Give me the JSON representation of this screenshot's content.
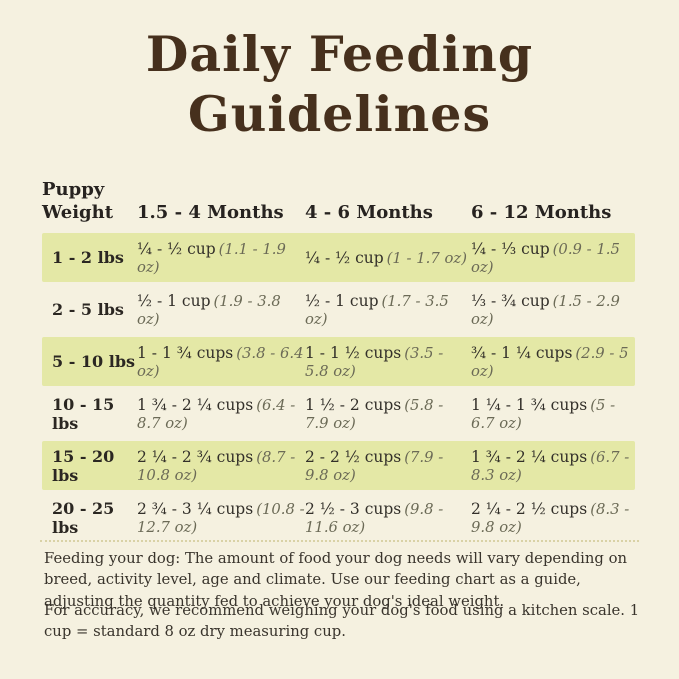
{
  "title": {
    "line1": "Daily Feeding",
    "line2": "Guidelines"
  },
  "table": {
    "weight_header": {
      "line1": "Puppy",
      "line2": "Weight"
    },
    "column_headers": [
      "1.5 - 4 Months",
      "4 - 6 Months",
      "6 - 12 Months"
    ],
    "rows": [
      {
        "weight": "1 - 2 lbs",
        "highlighted": true,
        "cells": [
          {
            "amount": "¼ - ½ cup",
            "oz": "(1.1 - 1.9 oz)"
          },
          {
            "amount": "¼ - ½ cup",
            "oz": "(1 - 1.7 oz)"
          },
          {
            "amount": "¼ - ⅓ cup",
            "oz": "(0.9 - 1.5 oz)"
          }
        ]
      },
      {
        "weight": "2 - 5 lbs",
        "highlighted": false,
        "cells": [
          {
            "amount": "½ - 1 cup",
            "oz": "(1.9 - 3.8 oz)"
          },
          {
            "amount": "½ - 1 cup",
            "oz": "(1.7 - 3.5 oz)"
          },
          {
            "amount": "⅓ - ¾ cup",
            "oz": "(1.5 - 2.9 oz)"
          }
        ]
      },
      {
        "weight": "5 - 10 lbs",
        "highlighted": true,
        "cells": [
          {
            "amount": "1 - 1 ¾ cups",
            "oz": "(3.8 - 6.4 oz)"
          },
          {
            "amount": "1 - 1 ½ cups",
            "oz": "(3.5 - 5.8 oz)"
          },
          {
            "amount": "¾ - 1 ¼ cups",
            "oz": "(2.9 - 5 oz)"
          }
        ]
      },
      {
        "weight": "10 - 15 lbs",
        "highlighted": false,
        "cells": [
          {
            "amount": "1 ¾ - 2 ¼ cups",
            "oz": "(6.4 - 8.7 oz)"
          },
          {
            "amount": "1 ½ - 2 cups",
            "oz": "(5.8 - 7.9 oz)"
          },
          {
            "amount": "1 ¼ - 1 ¾ cups",
            "oz": "(5 - 6.7 oz)"
          }
        ]
      },
      {
        "weight": "15 - 20 lbs",
        "highlighted": true,
        "cells": [
          {
            "amount": "2 ¼ - 2 ¾ cups",
            "oz": "(8.7 - 10.8 oz)"
          },
          {
            "amount": "2 - 2 ½ cups",
            "oz": "(7.9 - 9.8 oz)"
          },
          {
            "amount": "1 ¾ - 2 ¼ cups",
            "oz": "(6.7 - 8.3 oz)"
          }
        ]
      },
      {
        "weight": "20 - 25 lbs",
        "highlighted": false,
        "cells": [
          {
            "amount": "2 ¾ - 3 ¼ cups",
            "oz": "(10.8 - 12.7 oz)"
          },
          {
            "amount": "2 ½ - 3 cups",
            "oz": "(9.8 - 11.6 oz)"
          },
          {
            "amount": "2 ¼ - 2 ½ cups",
            "oz": "(8.3 - 9.8 oz)"
          }
        ]
      }
    ]
  },
  "notes": {
    "feeding": "Feeding your dog: The amount of food your dog needs will vary depending on breed, activity level, age and climate. Use our feeding chart as a guide, adjusting the quantity fed to achieve your dog's ideal weight.",
    "accuracy": "For accuracy, we recommend weighing your dog's food using a kitchen scale. 1 cup = standard 8 oz dry measuring cup."
  },
  "colors": {
    "background": "#f5f1e0",
    "highlight_band": "#e4e8a6",
    "title_brown": "#46301d",
    "body_text": "#2e2a25",
    "oz_text": "#6b6a56",
    "divider": "#d9d2a6"
  }
}
